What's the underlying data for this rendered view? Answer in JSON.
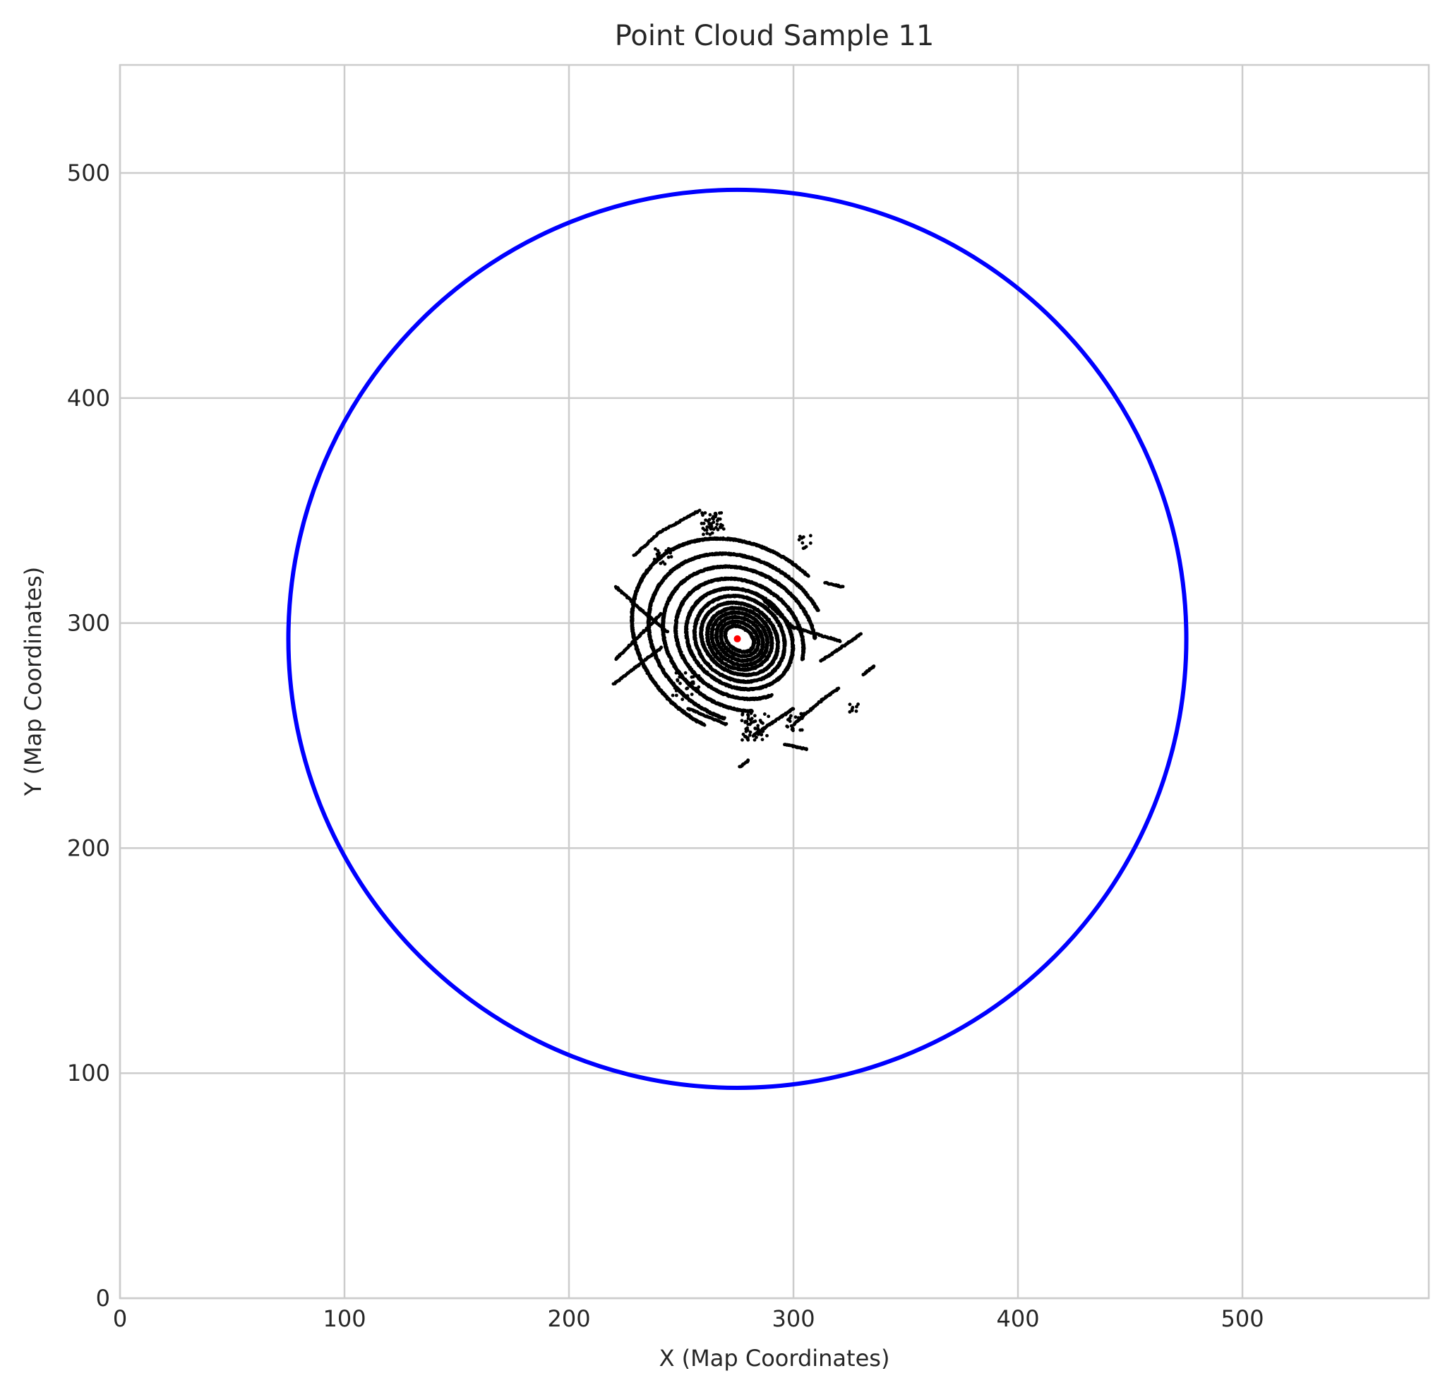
{
  "chart_data": {
    "type": "scatter",
    "title": "Point Cloud Sample 11",
    "xlabel": "X (Map Coordinates)",
    "ylabel": "Y (Map Coordinates)",
    "xlim": [
      0,
      583
    ],
    "ylim": [
      0,
      548
    ],
    "xticks": [
      0,
      100,
      200,
      300,
      400,
      500
    ],
    "yticks": [
      0,
      100,
      200,
      300,
      400,
      500
    ],
    "grid": true,
    "aspect": "equal",
    "colors": {
      "circle": "#0000ff",
      "points": "#000000",
      "center": "#ff0000",
      "grid": "#cccccc",
      "spine": "#cccccc"
    },
    "series": [
      {
        "kind": "circle",
        "center": [
          275,
          293
        ],
        "radius": 200
      },
      {
        "kind": "center_marker",
        "x": [
          275
        ],
        "y": [
          293
        ]
      },
      {
        "kind": "point_cloud",
        "rings": [
          {
            "cx": 276,
            "cy": 293,
            "rx": 7,
            "ry": 5,
            "angle": -35,
            "from": 0,
            "to": 360
          },
          {
            "cx": 276,
            "cy": 293,
            "rx": 9,
            "ry": 7,
            "angle": -35,
            "from": 0,
            "to": 360
          },
          {
            "cx": 276,
            "cy": 293,
            "rx": 11,
            "ry": 9,
            "angle": -35,
            "from": 0,
            "to": 360
          },
          {
            "cx": 276,
            "cy": 293,
            "rx": 13,
            "ry": 11,
            "angle": -35,
            "from": 0,
            "to": 360
          },
          {
            "cx": 276,
            "cy": 293,
            "rx": 15,
            "ry": 13,
            "angle": -35,
            "from": 0,
            "to": 360
          },
          {
            "cx": 276,
            "cy": 293,
            "rx": 18,
            "ry": 15,
            "angle": -35,
            "from": 0,
            "to": 360
          },
          {
            "cx": 276,
            "cy": 293,
            "rx": 21,
            "ry": 18,
            "angle": -35,
            "from": 0,
            "to": 360
          },
          {
            "cx": 276,
            "cy": 293,
            "rx": 25,
            "ry": 21,
            "angle": -35,
            "from": 0,
            "to": 360
          },
          {
            "cx": 276,
            "cy": 293,
            "rx": 30,
            "ry": 25,
            "angle": -35,
            "from": 20,
            "to": 330
          },
          {
            "cx": 276,
            "cy": 293,
            "rx": 36,
            "ry": 30,
            "angle": -35,
            "from": 40,
            "to": 310
          },
          {
            "cx": 276,
            "cy": 293,
            "rx": 43,
            "ry": 35,
            "angle": -35,
            "from": 60,
            "to": 290
          },
          {
            "cx": 276,
            "cy": 293,
            "rx": 51,
            "ry": 41,
            "angle": -35,
            "from": 80,
            "to": 280
          }
        ],
        "segments": [
          {
            "x": [
              220,
              241
            ],
            "y": [
              273,
              289
            ]
          },
          {
            "x": [
              221,
              241
            ],
            "y": [
              284,
              304
            ]
          },
          {
            "x": [
              221,
              232
            ],
            "y": [
              316,
              306
            ]
          },
          {
            "x": [
              232,
              244
            ],
            "y": [
              306,
              296
            ]
          },
          {
            "x": [
              229,
              240
            ],
            "y": [
              330,
              340
            ]
          },
          {
            "x": [
              240,
              258
            ],
            "y": [
              340,
              350
            ]
          },
          {
            "x": [
              287,
              300
            ],
            "y": [
              310,
              298
            ]
          },
          {
            "x": [
              300,
              321
            ],
            "y": [
              298,
              292
            ]
          },
          {
            "x": [
              312,
              330
            ],
            "y": [
              283,
              295
            ]
          },
          {
            "x": [
              296,
              306
            ],
            "y": [
              246,
              244
            ]
          },
          {
            "x": [
              300,
              313
            ],
            "y": [
              255,
              266
            ]
          },
          {
            "x": [
              313,
              320
            ],
            "y": [
              266,
              271
            ]
          },
          {
            "x": [
              314,
              322
            ],
            "y": [
              318,
              316
            ]
          },
          {
            "x": [
              331,
              336
            ],
            "y": [
              277,
              281
            ]
          },
          {
            "x": [
              276,
              280
            ],
            "y": [
              236,
              239
            ]
          },
          {
            "x": [
              253,
              270
            ],
            "y": [
              262,
              255
            ]
          },
          {
            "x": [
              282,
              300
            ],
            "y": [
              250,
              262
            ]
          }
        ],
        "clusters": [
          {
            "x": 264,
            "y": 344,
            "spread": 5,
            "count": 45
          },
          {
            "x": 283,
            "y": 254,
            "spread": 6,
            "count": 55
          },
          {
            "x": 242,
            "y": 330,
            "spread": 4,
            "count": 20
          },
          {
            "x": 252,
            "y": 272,
            "spread": 6,
            "count": 30
          },
          {
            "x": 301,
            "y": 256,
            "spread": 4,
            "count": 20
          },
          {
            "x": 305,
            "y": 336,
            "spread": 3,
            "count": 10
          },
          {
            "x": 327,
            "y": 262,
            "spread": 2,
            "count": 8
          }
        ]
      }
    ]
  }
}
